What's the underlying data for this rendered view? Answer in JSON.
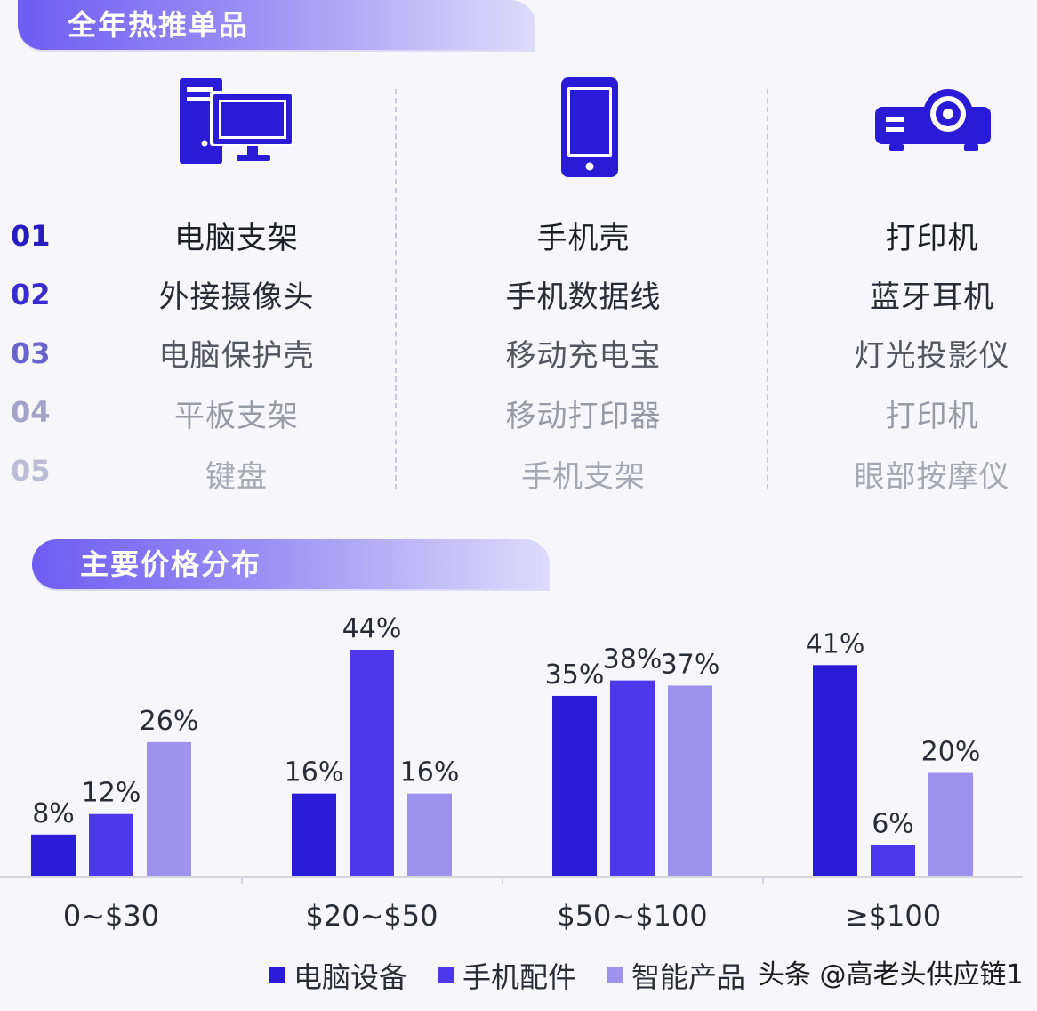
{
  "section1": {
    "title": "全年热推单品"
  },
  "section2": {
    "title": "主要价格分布"
  },
  "ranks": [
    "01",
    "02",
    "03",
    "04",
    "05"
  ],
  "columns": [
    {
      "icon": "desktop-computer-icon",
      "items": [
        "电脑支架",
        "外接摄像头",
        "电脑保护壳",
        "平板支架",
        "键盘"
      ]
    },
    {
      "icon": "smartphone-icon",
      "items": [
        "手机壳",
        "手机数据线",
        "移动充电宝",
        "移动打印器",
        "手机支架"
      ]
    },
    {
      "icon": "projector-icon",
      "items": [
        "打印机",
        "蓝牙耳机",
        "灯光投影仪",
        "打印机",
        "眼部按摩仪"
      ]
    }
  ],
  "colors": {
    "accent": "#2a1bd6",
    "series1": "#2a1bd6",
    "series2": "#4f37ec",
    "series3": "#9d92ee"
  },
  "chart_data": {
    "type": "bar",
    "categories": [
      "0~$30",
      "$20~$50",
      "$50~$100",
      "≥$100"
    ],
    "series": [
      {
        "name": "电脑设备",
        "values": [
          8,
          16,
          35,
          41
        ],
        "color": "#2a1bd6"
      },
      {
        "name": "手机配件",
        "values": [
          12,
          44,
          38,
          6
        ],
        "color": "#4f37ec"
      },
      {
        "name": "智能产品",
        "values": [
          26,
          16,
          37,
          20
        ],
        "color": "#9d92ee"
      }
    ],
    "value_suffix": "%",
    "ylim": [
      0,
      44
    ],
    "grid": false,
    "legend_position": "bottom",
    "title": "",
    "xlabel": "",
    "ylabel": ""
  },
  "watermark": "头条 @高老头供应链1"
}
